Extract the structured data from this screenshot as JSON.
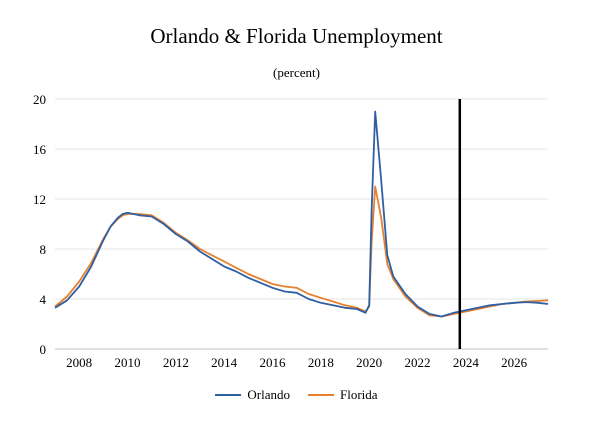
{
  "chart_data": {
    "type": "line",
    "title": "Orlando & Florida Unemployment",
    "subtitle": "(percent)",
    "xlabel": "",
    "ylabel": "",
    "xlim": [
      2007.0,
      2027.4
    ],
    "ylim": [
      0,
      20
    ],
    "y_ticks": [
      "0",
      "4",
      "8",
      "12",
      "16",
      "20"
    ],
    "y_tick_values": [
      0,
      4,
      8,
      12,
      16,
      20
    ],
    "x_ticks": [
      "2008",
      "2010",
      "2012",
      "2014",
      "2016",
      "2018",
      "2020",
      "2022",
      "2024",
      "2026"
    ],
    "x_tick_values": [
      2008,
      2010,
      2012,
      2014,
      2016,
      2018,
      2020,
      2022,
      2024,
      2026
    ],
    "grid": "horizontal",
    "legend_position": "bottom",
    "vertical_marker": 2023.75,
    "series": [
      {
        "name": "Orlando",
        "color": "#2e5fa3",
        "x": [
          2007.0,
          2007.5,
          2008.0,
          2008.5,
          2009.0,
          2009.3,
          2009.6,
          2009.8,
          2010.0,
          2010.5,
          2011.0,
          2011.5,
          2012.0,
          2012.5,
          2013.0,
          2013.5,
          2014.0,
          2014.5,
          2015.0,
          2015.5,
          2016.0,
          2016.5,
          2017.0,
          2017.5,
          2018.0,
          2018.5,
          2019.0,
          2019.5,
          2019.85,
          2020.0,
          2020.1,
          2020.25,
          2020.5,
          2020.75,
          2021.0,
          2021.5,
          2022.0,
          2022.5,
          2023.0,
          2023.5,
          2024.0,
          2024.5,
          2025.0,
          2025.5,
          2026.0,
          2026.5,
          2027.0,
          2027.4
        ],
        "values": [
          3.3,
          3.9,
          5.0,
          6.6,
          8.7,
          9.8,
          10.5,
          10.8,
          10.9,
          10.7,
          10.6,
          10.0,
          9.2,
          8.6,
          7.8,
          7.2,
          6.6,
          6.2,
          5.7,
          5.3,
          4.9,
          4.6,
          4.5,
          4.0,
          3.7,
          3.5,
          3.3,
          3.2,
          2.9,
          3.5,
          11.0,
          19.0,
          13.5,
          7.5,
          5.8,
          4.4,
          3.4,
          2.8,
          2.6,
          2.9,
          3.1,
          3.3,
          3.5,
          3.6,
          3.7,
          3.75,
          3.7,
          3.6
        ]
      },
      {
        "name": "Florida",
        "color": "#e8812f",
        "x": [
          2007.0,
          2007.5,
          2008.0,
          2008.5,
          2009.0,
          2009.3,
          2009.6,
          2009.8,
          2010.0,
          2010.5,
          2011.0,
          2011.5,
          2012.0,
          2012.5,
          2013.0,
          2013.5,
          2014.0,
          2014.5,
          2015.0,
          2015.5,
          2016.0,
          2016.5,
          2017.0,
          2017.5,
          2018.0,
          2018.5,
          2019.0,
          2019.5,
          2019.85,
          2020.0,
          2020.1,
          2020.25,
          2020.5,
          2020.75,
          2021.0,
          2021.5,
          2022.0,
          2022.5,
          2023.0,
          2023.5,
          2024.0,
          2024.5,
          2025.0,
          2025.5,
          2026.0,
          2026.5,
          2027.0,
          2027.4
        ],
        "values": [
          3.4,
          4.2,
          5.4,
          6.9,
          8.8,
          9.8,
          10.4,
          10.7,
          10.8,
          10.8,
          10.7,
          10.1,
          9.3,
          8.7,
          8.0,
          7.5,
          7.0,
          6.5,
          6.0,
          5.6,
          5.2,
          5.0,
          4.9,
          4.4,
          4.1,
          3.8,
          3.5,
          3.3,
          3.0,
          3.4,
          8.5,
          13.0,
          10.5,
          6.8,
          5.6,
          4.2,
          3.3,
          2.7,
          2.6,
          2.8,
          3.0,
          3.2,
          3.4,
          3.6,
          3.7,
          3.8,
          3.85,
          3.9
        ]
      }
    ]
  }
}
